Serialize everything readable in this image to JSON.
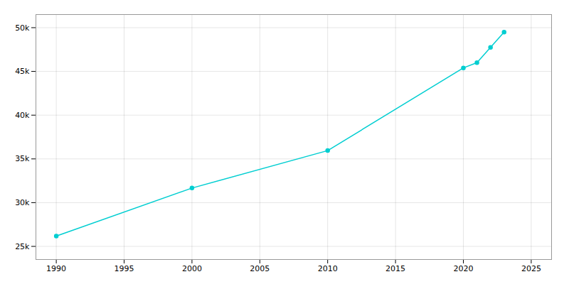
{
  "chart_data": {
    "type": "line",
    "x": [
      1990,
      2000,
      2010,
      2020,
      2021,
      2022,
      2023
    ],
    "values": [
      26178,
      31667,
      35950,
      45400,
      46000,
      47750,
      49500
    ],
    "color": "#00CED1",
    "marker": "circle",
    "xlim": [
      1988.5,
      2026.5
    ],
    "ylim": [
      23500,
      51500
    ],
    "xticks": [
      1990,
      1995,
      2000,
      2005,
      2010,
      2015,
      2020,
      2025
    ],
    "yticks": [
      {
        "value": 25000,
        "label": "25k"
      },
      {
        "value": 30000,
        "label": "30k"
      },
      {
        "value": 35000,
        "label": "35k"
      },
      {
        "value": 40000,
        "label": "40k"
      },
      {
        "value": 45000,
        "label": "45k"
      },
      {
        "value": 50000,
        "label": "50k"
      }
    ],
    "grid": true
  }
}
